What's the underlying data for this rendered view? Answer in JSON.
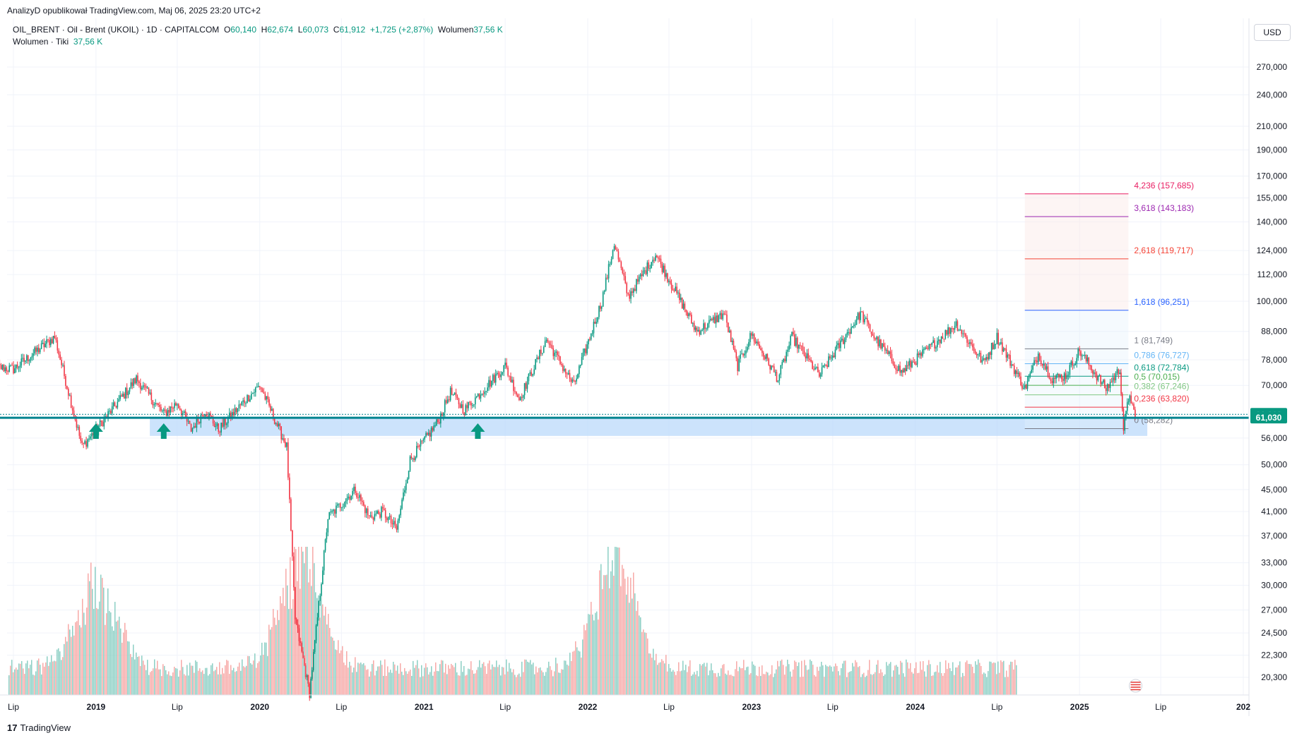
{
  "header": {
    "published": "AnalizyD opublikował TradingView.com, Maj 06, 2025 23:20 UTC+2"
  },
  "legend": {
    "symbol": "OIL_BRENT · Oil - Brent (UKOIL) · 1D · CAPITALCOM",
    "o_label": "O",
    "o_value": "60,140",
    "h_label": "H",
    "h_value": "62,674",
    "l_label": "L",
    "l_value": "60,073",
    "c_label": "C",
    "c_value": "61,912",
    "change": "+1,725 (+2,87%)",
    "vol_label": "Wolumen",
    "vol_value": "37,56 K",
    "vol2_label": "Wolumen · Tiki",
    "vol2_value": "37,56 K"
  },
  "currency": "USD",
  "footer": {
    "brand": "TradingView"
  },
  "colors": {
    "up": "#089981",
    "down": "#f23645",
    "up_vol": "#8ccfc4",
    "down_vol": "#f7a9a7",
    "support_zone": "#bbd9fb",
    "support_line": "#00838f",
    "price_label": "#089981"
  },
  "chart_data": {
    "type": "candlestick",
    "y_axis": {
      "scale": "log",
      "ticks": [
        "270,000",
        "240,000",
        "210,000",
        "190,000",
        "170,000",
        "155,000",
        "140,000",
        "124,000",
        "112,000",
        "100,000",
        "88,000",
        "78,000",
        "70,000",
        "56,000",
        "50,000",
        "45,000",
        "41,000",
        "37,000",
        "33,000",
        "30,000",
        "27,000",
        "24,500",
        "22,300",
        "20,300"
      ],
      "tick_values": [
        270,
        240,
        210,
        190,
        170,
        155,
        140,
        124,
        112,
        100,
        88,
        78,
        70,
        56,
        50,
        45,
        41,
        37,
        33,
        30,
        27,
        24.5,
        22.3,
        20.3
      ]
    },
    "x_axis": {
      "ticks": [
        "Lip",
        "2019",
        "Lip",
        "2020",
        "Lip",
        "2021",
        "Lip",
        "2022",
        "Lip",
        "2023",
        "Lip",
        "2024",
        "Lip",
        "2025",
        "Lip",
        "202"
      ],
      "tick_dates": [
        "2018-07",
        "2019-01",
        "2019-07",
        "2020-01",
        "2020-07",
        "2021-01",
        "2021-07",
        "2022-01",
        "2022-07",
        "2023-01",
        "2023-07",
        "2024-01",
        "2024-07",
        "2025-01",
        "2025-07",
        "2026-01"
      ]
    },
    "price_labels": [
      {
        "value": "61,912",
        "price": 61.912
      },
      {
        "value": "61,030",
        "price": 61.03
      }
    ],
    "price_path": [
      [
        "2018-05",
        76
      ],
      [
        "2018-07",
        75
      ],
      [
        "2018-10",
        86
      ],
      [
        "2018-12",
        54
      ],
      [
        "2019-01",
        58
      ],
      [
        "2019-04",
        72
      ],
      [
        "2019-06",
        62
      ],
      [
        "2019-07",
        65
      ],
      [
        "2019-08",
        58
      ],
      [
        "2019-09",
        63
      ],
      [
        "2019-10",
        58
      ],
      [
        "2019-12",
        66
      ],
      [
        "2020-01",
        70
      ],
      [
        "2020-03",
        54
      ],
      [
        "2020-03-20",
        26
      ],
      [
        "2020-04-21",
        19
      ],
      [
        "2020-06",
        40
      ],
      [
        "2020-08",
        45
      ],
      [
        "2020-09",
        40
      ],
      [
        "2020-10",
        41
      ],
      [
        "2020-11",
        38
      ],
      [
        "2020-12",
        51
      ],
      [
        "2021-02",
        60
      ],
      [
        "2021-03",
        68
      ],
      [
        "2021-04",
        63
      ],
      [
        "2021-07",
        76
      ],
      [
        "2021-08",
        66
      ],
      [
        "2021-10",
        85
      ],
      [
        "2021-12",
        70
      ],
      [
        "2022-02",
        100
      ],
      [
        "2022-03",
        128
      ],
      [
        "2022-04",
        102
      ],
      [
        "2022-06",
        122
      ],
      [
        "2022-09",
        88
      ],
      [
        "2022-11",
        95
      ],
      [
        "2022-12",
        76
      ],
      [
        "2023-01",
        87
      ],
      [
        "2023-03",
        72
      ],
      [
        "2023-04",
        86
      ],
      [
        "2023-06",
        73
      ],
      [
        "2023-09",
        95
      ],
      [
        "2023-10",
        86
      ],
      [
        "2023-12",
        74
      ],
      [
        "2024-02",
        82
      ],
      [
        "2024-04",
        91
      ],
      [
        "2024-06",
        77
      ],
      [
        "2024-07",
        86
      ],
      [
        "2024-09",
        69
      ],
      [
        "2024-10",
        80
      ],
      [
        "2024-11",
        72
      ],
      [
        "2024-12",
        73
      ],
      [
        "2025-01",
        81
      ],
      [
        "2025-03",
        69
      ],
      [
        "2025-04",
        75
      ],
      [
        "2025-04-09",
        58.3
      ],
      [
        "2025-04-23",
        68
      ],
      [
        "2025-05-05",
        60
      ],
      [
        "2025-05-06",
        61.9
      ]
    ],
    "volume": {
      "scale": "relative",
      "spikes": [
        [
          "2020-04",
          1.0
        ],
        [
          "2022-03",
          0.95
        ],
        [
          "2019-01",
          0.7
        ],
        [
          "2025-04",
          0.45
        ]
      ]
    },
    "support_zone": {
      "from": 56.5,
      "to": 61.0,
      "start": "2019-05",
      "end": "2025-06"
    },
    "support_line": 61.03,
    "arrows": [
      "2019-01",
      "2019-06",
      "2021-05"
    ],
    "fibonacci": {
      "start": "2024-09",
      "end": "2025-04-20",
      "levels": [
        {
          "label": "4,236 (157,685)",
          "price": 157.685,
          "color": "#e91e63"
        },
        {
          "label": "3,618 (143,183)",
          "price": 143.183,
          "color": "#9c27b0"
        },
        {
          "label": "2,618 (119,717)",
          "price": 119.717,
          "color": "#f44336"
        },
        {
          "label": "1,618 (96,251)",
          "price": 96.251,
          "color": "#2962ff"
        },
        {
          "label": "1 (81,749)",
          "price": 81.749,
          "color": "#787b86"
        },
        {
          "label": "0,786 (76,727)",
          "price": 76.727,
          "color": "#64b5f6"
        },
        {
          "label": "0,618 (72,784)",
          "price": 72.784,
          "color": "#089981"
        },
        {
          "label": "0,5 (70,015)",
          "price": 70.015,
          "color": "#4caf50"
        },
        {
          "label": "0,382 (67,246)",
          "price": 67.246,
          "color": "#81c784"
        },
        {
          "label": "0,236 (63,820)",
          "price": 63.82,
          "color": "#f23645"
        },
        {
          "label": "0 (58,282)",
          "price": 58.282,
          "color": "#787b86"
        }
      ]
    }
  }
}
